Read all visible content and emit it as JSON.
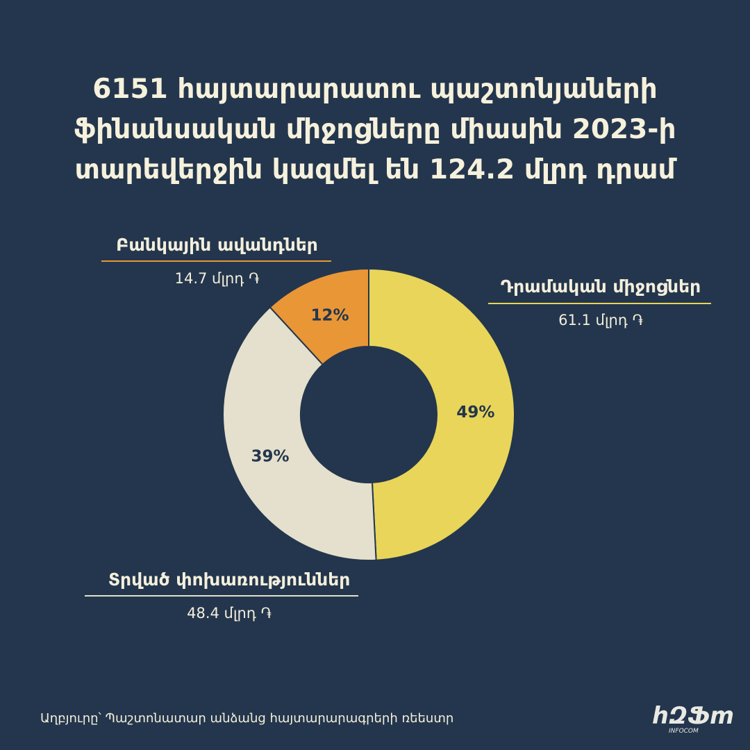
{
  "title_lines": [
    "6151 հայտարարատու պաշտոնյաների",
    "ֆինանսական միջոցները միասին 2023-ի",
    "տարեվերջին կազմել են 124.2 մլրդ դրամ"
  ],
  "chart_data": {
    "type": "pie",
    "donut": true,
    "slices": [
      {
        "name": "Դրամական միջոցներ",
        "value": 61.1,
        "value_label": "61.1 մլրդ ֏",
        "percent_label": "49%",
        "color": "#e8d55a"
      },
      {
        "name": "Տրված փոխառություններ",
        "value": 48.4,
        "value_label": "48.4 մլրդ ֏",
        "percent_label": "39%",
        "color": "#e4e0cd"
      },
      {
        "name": "Բանկային ավանդներ",
        "value": 14.7,
        "value_label": "14.7 մլրդ ֏",
        "percent_label": "12%",
        "color": "#e99637"
      }
    ]
  },
  "source_text": "Աղբյուրը՝ Պաշտոնատար անձանց հայտարարագրերի ռեեստր",
  "logo_text": "հԶՖm",
  "logo_subtext": "INFOCOM",
  "colors": {
    "background": "#24364d",
    "text": "#f3efdc"
  }
}
